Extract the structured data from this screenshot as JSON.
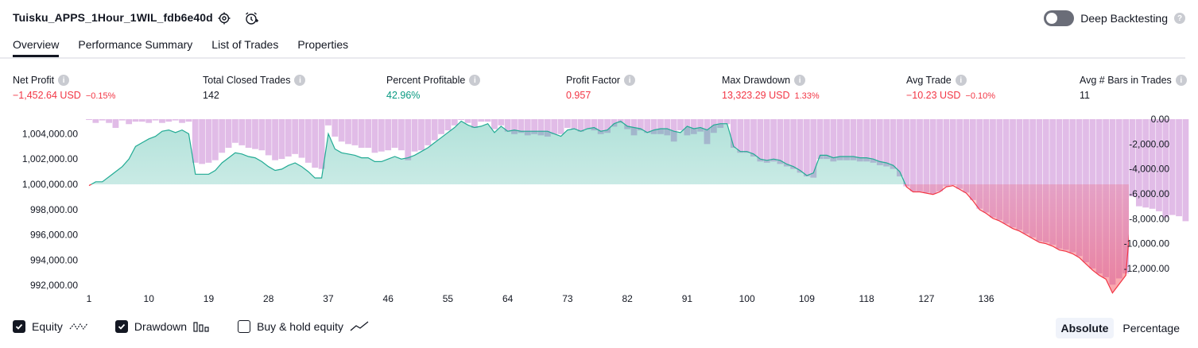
{
  "header": {
    "title": "Tuisku_APPS_1Hour_1WIL_fdb6e40d",
    "toggle_label": "Deep Backtesting"
  },
  "tabs": [
    {
      "label": "Overview",
      "active": true
    },
    {
      "label": "Performance Summary",
      "active": false
    },
    {
      "label": "List of Trades",
      "active": false
    },
    {
      "label": "Properties",
      "active": false
    }
  ],
  "metrics": [
    {
      "label": "Net Profit",
      "value": "−1,452.64 USD",
      "sub": "−0.15%",
      "color": "#f23645"
    },
    {
      "label": "Total Closed Trades",
      "value": "142",
      "sub": "",
      "color": "#131722"
    },
    {
      "label": "Percent Profitable",
      "value": "42.96%",
      "sub": "",
      "color": "#089981"
    },
    {
      "label": "Profit Factor",
      "value": "0.957",
      "sub": "",
      "color": "#f23645"
    },
    {
      "label": "Max Drawdown",
      "value": "13,323.29 USD",
      "sub": "1.33%",
      "color": "#f23645"
    },
    {
      "label": "Avg Trade",
      "value": "−10.23 USD",
      "sub": "−0.10%",
      "color": "#f23645"
    },
    {
      "label": "Avg # Bars in Trades",
      "value": "11",
      "sub": "",
      "color": "#131722"
    }
  ],
  "chart_data": {
    "type": "area",
    "x_ticks": [
      1,
      10,
      19,
      28,
      37,
      46,
      55,
      64,
      73,
      82,
      91,
      100,
      109,
      118,
      127,
      136
    ],
    "left_axis": {
      "ticks": [
        "1,004,000.00",
        "1,002,000.00",
        "1,000,000.00",
        "998,000.00",
        "996,000.00",
        "994,000.00",
        "992,000.00"
      ],
      "values": [
        1004000,
        1002000,
        1000000,
        998000,
        996000,
        994000,
        992000
      ]
    },
    "right_axis": {
      "ticks": [
        "0.00",
        "-2,000.00",
        "-4,000.00",
        "-6,000.00",
        "-8,000.00",
        "-10,000.00",
        "-12,000.00"
      ],
      "values": [
        0,
        -2000,
        -4000,
        -6000,
        -8000,
        -10000,
        -12000
      ]
    },
    "baseline": 1000000,
    "colors": {
      "equity_up": "#22ab94",
      "equity_down": "#f23645",
      "drawdown": "#ce93d8"
    },
    "equity": [
      999900,
      1000200,
      1000200,
      1000600,
      1001000,
      1001400,
      1002000,
      1003000,
      1003300,
      1003600,
      1003800,
      1004200,
      1004300,
      1004100,
      1004300,
      1004000,
      1000800,
      1000800,
      1000800,
      1001100,
      1001700,
      1002100,
      1002500,
      1002400,
      1002200,
      1002100,
      1001800,
      1001400,
      1001100,
      1001200,
      1001500,
      1001700,
      1001400,
      1001000,
      1000500,
      1000500,
      1004000,
      1002800,
      1002500,
      1002400,
      1002300,
      1002100,
      1002100,
      1001800,
      1001800,
      1002000,
      1002200,
      1002000,
      1002100,
      1002300,
      1002600,
      1002900,
      1003300,
      1003700,
      1004100,
      1004500,
      1005000,
      1004700,
      1004500,
      1004600,
      1004800,
      1004100,
      1004600,
      1004200,
      1004300,
      1004200,
      1004200,
      1004200,
      1004200,
      1004200,
      1004000,
      1003800,
      1004300,
      1004400,
      1004200,
      1004400,
      1004500,
      1004200,
      1004300,
      1004800,
      1005000,
      1004600,
      1004500,
      1004400,
      1004100,
      1004300,
      1004400,
      1004400,
      1004200,
      1004100,
      1004600,
      1004400,
      1004500,
      1004300,
      1004700,
      1004800,
      1004800,
      1003000,
      1002600,
      1002600,
      1002400,
      1002000,
      1001900,
      1002000,
      1001900,
      1001600,
      1001400,
      1001100,
      1000700,
      1000900,
      1002300,
      1002300,
      1002100,
      1002200,
      1002200,
      1002200,
      1002100,
      1002100,
      1002000,
      1001800,
      1001700,
      1001500,
      1001000,
      999800,
      999400,
      999400,
      999300,
      999200,
      999400,
      999800,
      999900,
      999600,
      999300,
      998700,
      998000,
      997700,
      997300,
      997100,
      996800,
      996500,
      996300,
      996000,
      995700,
      995400,
      995300,
      995100,
      994800,
      994700,
      994500,
      994200,
      993700,
      993200,
      992800,
      992500,
      991400,
      992100,
      992800,
      999000,
      998200,
      998100,
      998000,
      997800,
      997300,
      997500,
      997400,
      998800
    ],
    "drawdown": [
      0,
      -300,
      -100,
      -300,
      -700,
      -100,
      -400,
      -200,
      -200,
      -300,
      -100,
      -300,
      -200,
      -100,
      -300,
      -200,
      -3500,
      -3600,
      -3500,
      -3300,
      -2700,
      -2300,
      -1900,
      -2100,
      -2300,
      -2400,
      -2500,
      -2900,
      -3300,
      -3200,
      -3000,
      -2800,
      -3100,
      -3500,
      -3900,
      -4000,
      -500,
      -1400,
      -1800,
      -2000,
      -2100,
      -2300,
      -2300,
      -2700,
      -2600,
      -2500,
      -2300,
      -2500,
      -3300,
      -2600,
      -2500,
      -2100,
      -1700,
      -1200,
      -900,
      -500,
      0,
      -300,
      -700,
      -200,
      -200,
      -800,
      -500,
      -1000,
      -1200,
      -1100,
      -1300,
      -1200,
      -1300,
      -1400,
      -1200,
      -1200,
      -700,
      -800,
      -1000,
      -800,
      -900,
      -1200,
      -1100,
      -600,
      -300,
      -800,
      -1300,
      -900,
      -1100,
      -1200,
      -1200,
      -1300,
      -1800,
      -900,
      -1300,
      -1200,
      -1000,
      -2000,
      -1100,
      -700,
      -400,
      -2300,
      -2700,
      -2700,
      -3000,
      -3400,
      -3500,
      -3400,
      -3600,
      -3800,
      -4000,
      -4300,
      -4600,
      -4700,
      -3200,
      -3200,
      -3400,
      -3300,
      -3300,
      -3300,
      -3400,
      -3400,
      -3500,
      -3700,
      -3800,
      -4000,
      -4600,
      -5400,
      -5800,
      -5800,
      -5900,
      -6000,
      -5800,
      -5400,
      -5300,
      -5600,
      -5900,
      -6500,
      -7200,
      -7500,
      -7900,
      -8100,
      -8400,
      -8700,
      -8900,
      -9200,
      -9500,
      -9800,
      -9900,
      -10100,
      -10400,
      -10500,
      -10700,
      -11000,
      -11500,
      -12000,
      -12400,
      -12700,
      -13300,
      -12800,
      -12400,
      -6200,
      -7000,
      -7100,
      -7200,
      -7400,
      -7900,
      -7700,
      -7800,
      -8200
    ]
  },
  "legend": [
    {
      "label": "Equity",
      "checked": true,
      "icon": "equity-wave-icon"
    },
    {
      "label": "Drawdown",
      "checked": true,
      "icon": "bars-icon"
    },
    {
      "label": "Buy & hold equity",
      "checked": false,
      "icon": "line-icon"
    }
  ],
  "modes": [
    {
      "label": "Absolute",
      "active": true
    },
    {
      "label": "Percentage",
      "active": false
    }
  ]
}
